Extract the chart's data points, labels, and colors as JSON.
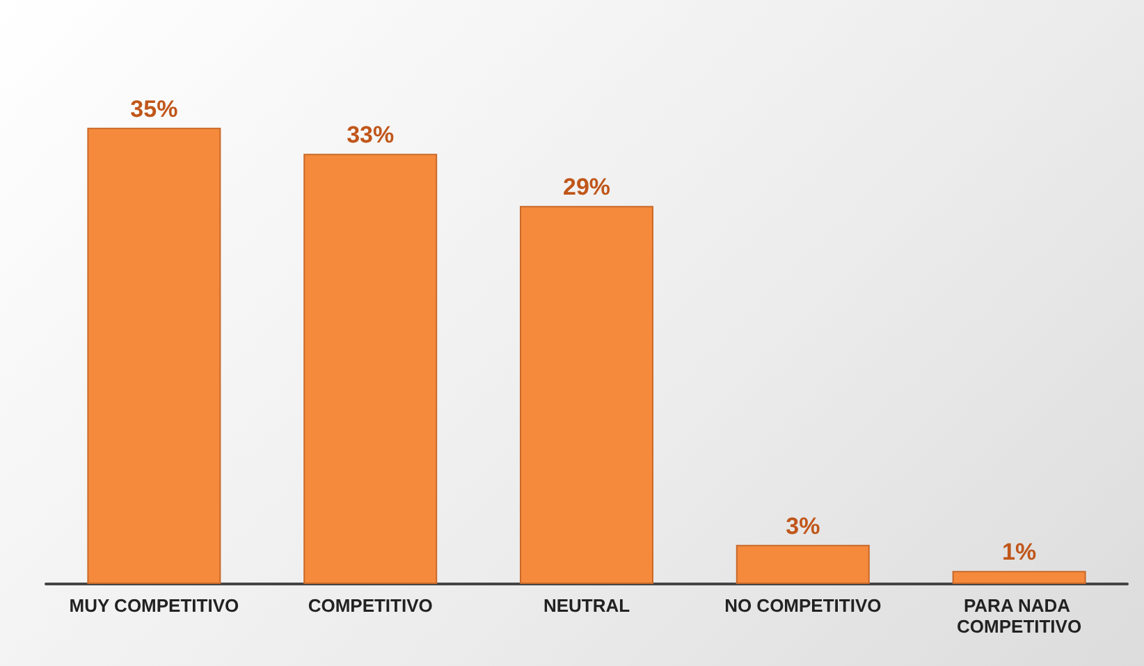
{
  "chart_data": {
    "type": "bar",
    "categories": [
      "MUY COMPETITIVO",
      "COMPETITIVO",
      "NEUTRAL",
      "NO COMPETITIVO",
      "PARA NADA COMPETITIVO"
    ],
    "values": [
      35,
      33,
      29,
      3,
      1
    ],
    "color": "#f58a3c",
    "value_labels": [
      "35%",
      "33%",
      "29%",
      "3%",
      "1%"
    ]
  }
}
